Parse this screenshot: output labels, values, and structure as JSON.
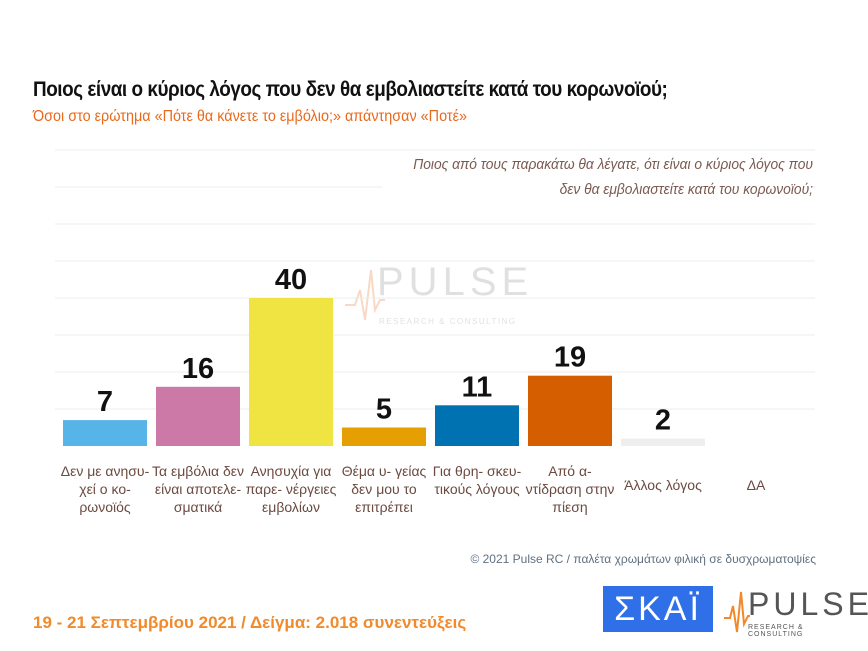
{
  "title": "Ποιος είναι ο κύριος λόγος που δεν θα εμβολιαστείτε κατά του κορωνοϊού;",
  "subtitle": "Όσοι στο ερώτημα «Πότε θα κάνετε το εμβόλιο;» απάντησαν «Ποτέ»",
  "question": "Ποιος από τους παρακάτω θα λέγατε, ότι είναι ο κύριος λόγος που δεν θα εμβολιαστείτε κατά του κορωνοϊού;",
  "credit": "© 2021 Pulse RC  /  παλέτα χρωμάτων φιλική σε δυσχρωματοψίες",
  "footer": "19 - 21 Σεπτεμβρίου 2021  /  Δείγμα:  2.018 συνεντεύξεις",
  "logos": {
    "skai": "ΣΚΑΪ",
    "pulse": "PULSE",
    "pulse_sub": "RESEARCH & CONSULTING"
  },
  "chart_data": {
    "type": "bar",
    "categories": [
      "Δεν με ανησυ- χεί ο κο- ρωνοϊός",
      "Τα εμβόλια δεν είναι αποτελε- σματικά",
      "Ανησυχία για παρε- νέργειες εμβολίων",
      "Θέμα υ- γείας δεν μου το επιτρέπει",
      "Για θρη- σκευ- τικούς λόγους",
      "Από α- ντίδραση στην πίεση",
      "Άλλος λόγος",
      "ΔΑ"
    ],
    "values": [
      7,
      16,
      40,
      5,
      11,
      19,
      2,
      null
    ],
    "colors": [
      "#56b4e9",
      "#cc79a7",
      "#f0e442",
      "#e69f00",
      "#0072b2",
      "#d55e00",
      "#eeeeee",
      "#999999"
    ],
    "ylim": [
      0,
      80
    ],
    "grid": true
  }
}
